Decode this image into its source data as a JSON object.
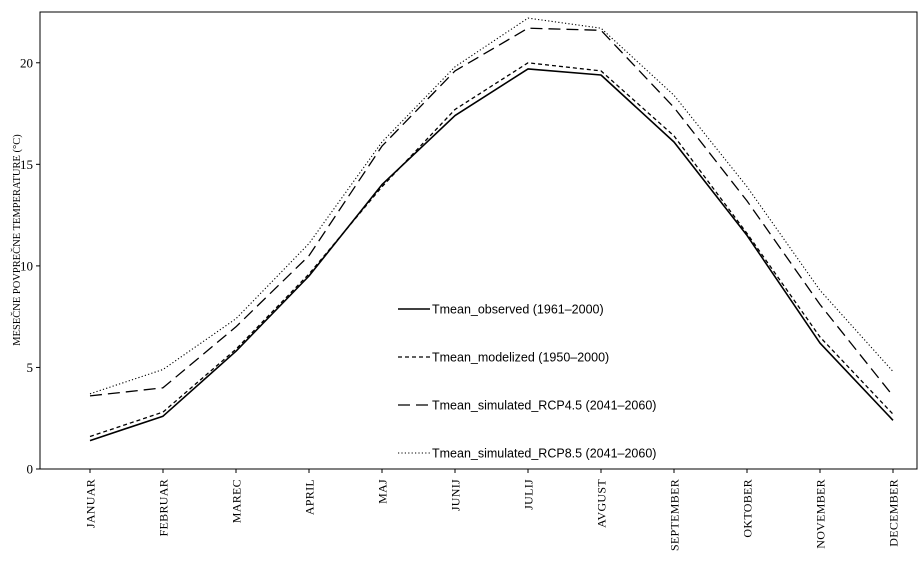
{
  "chart_data": {
    "type": "line",
    "title": "",
    "xlabel": "",
    "ylabel": "MESEČNE POVPREČNE TEMPERATURE (°C)",
    "ylim": [
      0,
      22.5
    ],
    "yticks": [
      0,
      5,
      10,
      15,
      20
    ],
    "grid": false,
    "legend_position": "center",
    "categories": [
      "JANUAR",
      "FEBRUAR",
      "MAREC",
      "APRIL",
      "MAJ",
      "JUNIJ",
      "JULIJ",
      "AVGUST",
      "SEPTEMBER",
      "OKTOBER",
      "NOVEMBER",
      "DECEMBER"
    ],
    "series": [
      {
        "name": "Tmean_observed  (1961–2000)",
        "style": "solid",
        "color": "#000000",
        "values": [
          1.4,
          2.6,
          5.8,
          9.5,
          14.0,
          17.4,
          19.7,
          19.4,
          16.1,
          11.5,
          6.2,
          2.4
        ]
      },
      {
        "name": "Tmean_modelized  (1950–2000)",
        "style": "dashed-short",
        "color": "#000000",
        "values": [
          1.6,
          2.8,
          5.9,
          9.6,
          13.9,
          17.7,
          20.0,
          19.6,
          16.4,
          11.6,
          6.5,
          2.7
        ]
      },
      {
        "name": "Tmean_simulated_RCP4.5  (2041–2060)",
        "style": "dashed-long",
        "color": "#000000",
        "values": [
          3.6,
          4.0,
          7.0,
          10.5,
          15.9,
          19.6,
          21.7,
          21.6,
          17.8,
          13.2,
          8.1,
          3.6
        ]
      },
      {
        "name": "Tmean_simulated_RCP8.5  (2041–2060)",
        "style": "dotted",
        "color": "#000000",
        "values": [
          3.7,
          4.9,
          7.4,
          11.1,
          16.1,
          19.8,
          22.2,
          21.7,
          18.4,
          13.9,
          8.8,
          4.8
        ]
      }
    ]
  }
}
